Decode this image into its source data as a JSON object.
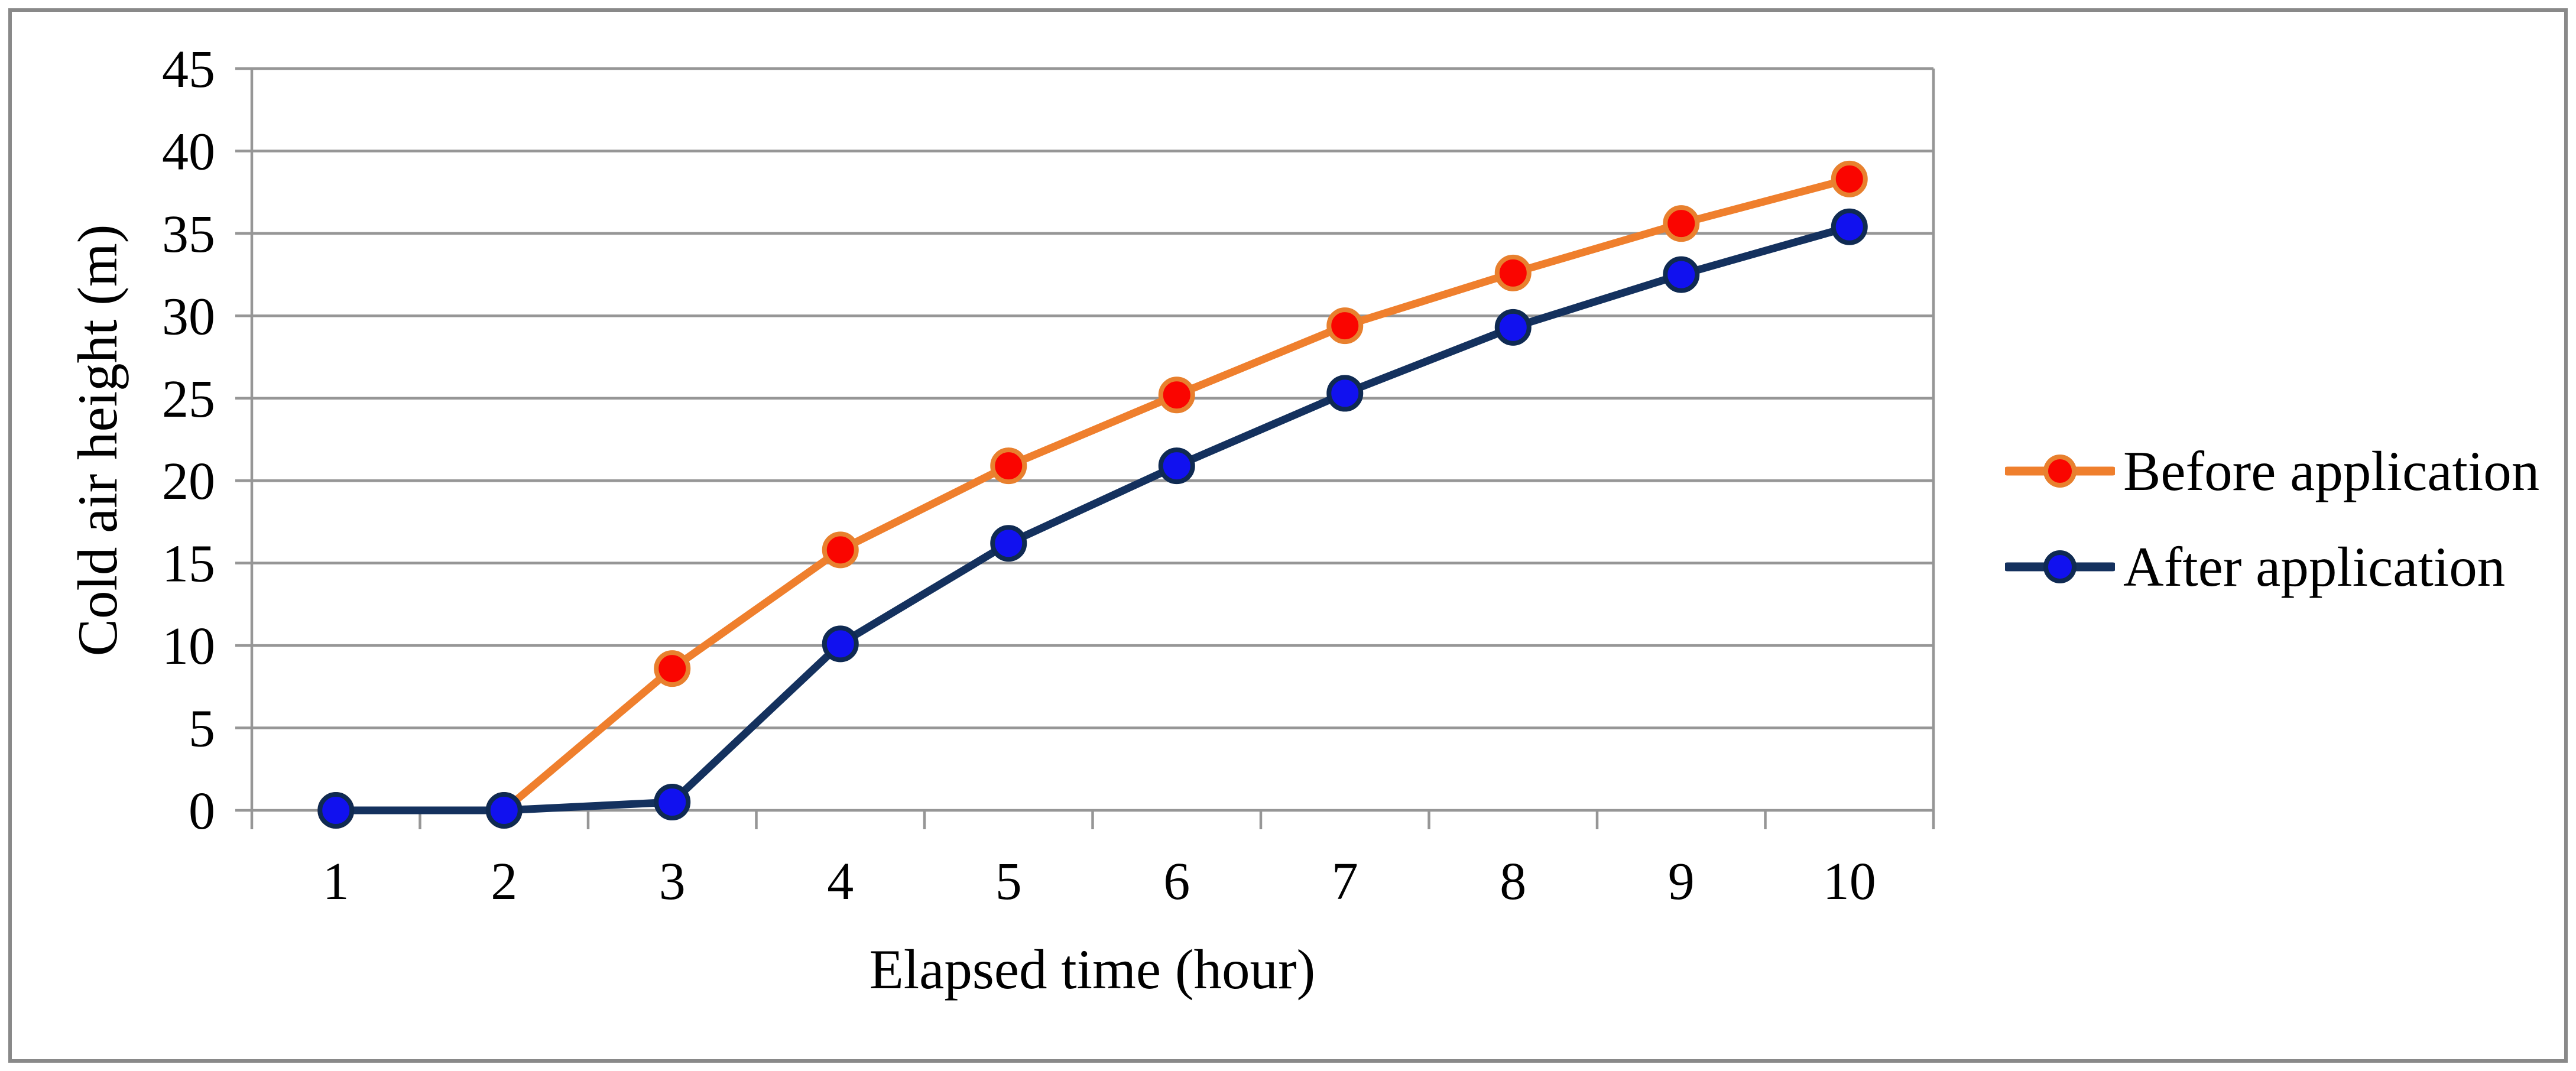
{
  "chart_data": {
    "type": "line",
    "title": "",
    "xlabel": "Elapsed time (hour)",
    "ylabel": "Cold air height (m)",
    "categories": [
      1,
      2,
      3,
      4,
      5,
      6,
      7,
      8,
      9,
      10
    ],
    "y_ticks": [
      0,
      5,
      10,
      15,
      20,
      25,
      30,
      35,
      40,
      45
    ],
    "ylim": [
      0,
      45
    ],
    "grid": "horizontal",
    "legend_position": "right",
    "series": [
      {
        "name": "Before application",
        "values": [
          0,
          0,
          8.6,
          15.8,
          20.9,
          25.2,
          29.4,
          32.6,
          35.6,
          38.3
        ],
        "line_color": "#EF7F2D",
        "marker_fill": "#FA0500",
        "marker_stroke": "#E8802E"
      },
      {
        "name": "After application",
        "values": [
          0,
          0,
          0.5,
          10.1,
          16.2,
          20.9,
          25.3,
          29.3,
          32.5,
          35.4
        ],
        "line_color": "#14315E",
        "marker_fill": "#1111EF",
        "marker_stroke": "#0F2A52"
      }
    ],
    "colors": {
      "gridline": "#969696",
      "axis": "#969696",
      "tick_text": "#000000",
      "page_frame": "#898989",
      "background": "#FFFFFF"
    }
  }
}
